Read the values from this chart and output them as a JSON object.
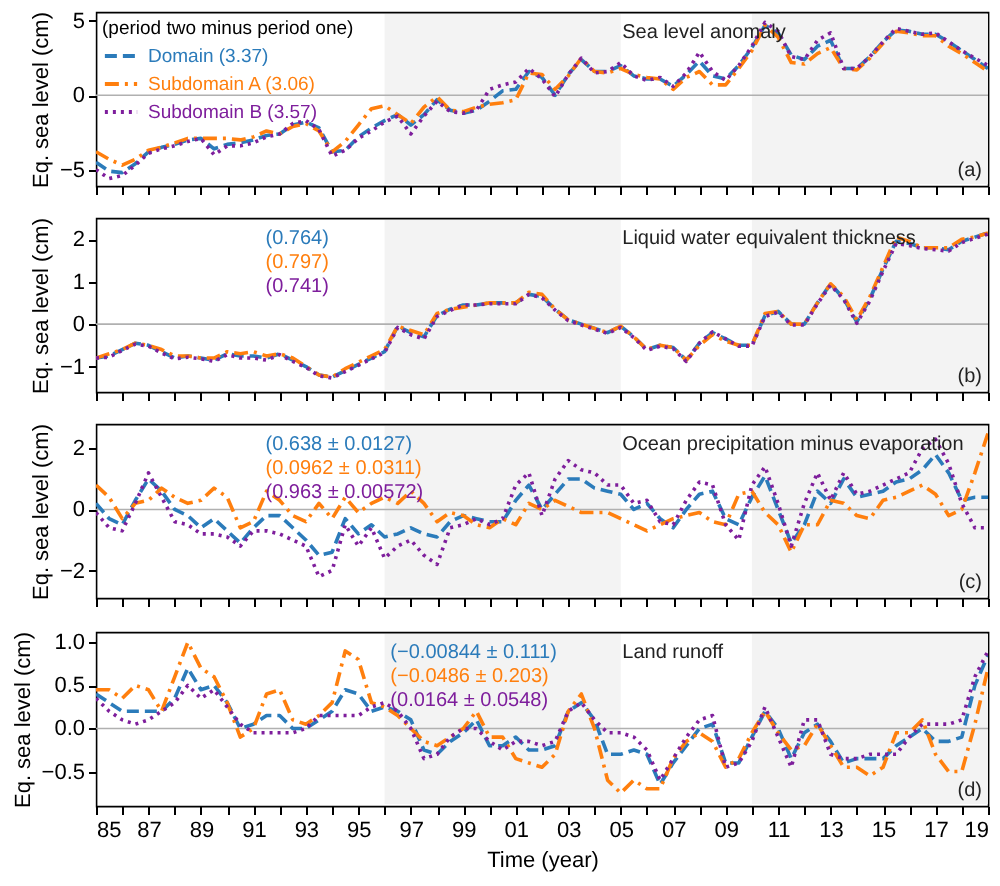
{
  "chart_data": [
    {
      "type": "line",
      "title": "Sea level anomaly",
      "ylabel": "Eq. sea level (cm)",
      "legend_title": "(period two minus period one)",
      "legend": "top left",
      "annotations": [
        "(a)"
      ],
      "tick_labels": "y",
      "xlim": [
        1985,
        2019
      ],
      "xticks": [
        {
          "value": 1985,
          "label": null
        },
        {
          "value": 1986,
          "label": null
        },
        {
          "value": 1987,
          "label": null
        },
        {
          "value": 1988,
          "label": null
        },
        {
          "value": 1989,
          "label": null
        },
        {
          "value": 1990,
          "label": null
        },
        {
          "value": 1991,
          "label": null
        },
        {
          "value": 1992,
          "label": null
        },
        {
          "value": 1993,
          "label": null
        },
        {
          "value": 1994,
          "label": null
        },
        {
          "value": 1995,
          "label": null
        },
        {
          "value": 1996,
          "label": null
        },
        {
          "value": 1997,
          "label": null
        },
        {
          "value": 1998,
          "label": null
        },
        {
          "value": 1999,
          "label": null
        },
        {
          "value": 2000,
          "label": null
        },
        {
          "value": 2001,
          "label": null
        },
        {
          "value": 2002,
          "label": null
        },
        {
          "value": 2003,
          "label": null
        },
        {
          "value": 2004,
          "label": null
        },
        {
          "value": 2005,
          "label": null
        },
        {
          "value": 2006,
          "label": null
        },
        {
          "value": 2007,
          "label": null
        },
        {
          "value": 2008,
          "label": null
        },
        {
          "value": 2009,
          "label": null
        },
        {
          "value": 2010,
          "label": null
        },
        {
          "value": 2011,
          "label": null
        },
        {
          "value": 2012,
          "label": null
        },
        {
          "value": 2013,
          "label": null
        },
        {
          "value": 2014,
          "label": null
        },
        {
          "value": 2015,
          "label": null
        },
        {
          "value": 2016,
          "label": null
        },
        {
          "value": 2017,
          "label": null
        },
        {
          "value": 2018,
          "label": null
        },
        {
          "value": 2019,
          "label": null
        }
      ],
      "ylim": [
        -6.1,
        5.6
      ],
      "yticks": [
        -5,
        0,
        5
      ],
      "ref_lines": [
        {
          "axis": "y",
          "value": 0,
          "color": "#b0b0b0"
        }
      ],
      "bands": [
        {
          "axis": "x",
          "from": 1996,
          "to": 2005,
          "color": "#f3f3f3"
        },
        {
          "axis": "x",
          "from": 2010,
          "to": 2019,
          "color": "#f3f3f3"
        }
      ],
      "x": [
        1985,
        1985.5,
        1986,
        1986.5,
        1987,
        1987.5,
        1988,
        1988.5,
        1989,
        1989.5,
        1990,
        1990.5,
        1991,
        1991.5,
        1992,
        1992.5,
        1993,
        1993.5,
        1994,
        1994.5,
        1995,
        1995.5,
        1996,
        1996.5,
        1997,
        1997.5,
        1998,
        1998.5,
        1999,
        1999.5,
        2000,
        2000.5,
        2001,
        2001.5,
        2002,
        2002.5,
        2003,
        2003.5,
        2004,
        2004.5,
        2005,
        2005.5,
        2006,
        2006.5,
        2007,
        2007.5,
        2008,
        2008.5,
        2009,
        2009.5,
        2010,
        2010.5,
        2011,
        2011.5,
        2012,
        2012.5,
        2013,
        2013.5,
        2014,
        2014.5,
        2015,
        2015.5,
        2016,
        2016.5,
        2017,
        2017.5,
        2018,
        2018.5,
        2019
      ],
      "series": [
        {
          "name": "Domain (3.37)",
          "color": "#2b7bba",
          "line_style": "dashed",
          "values": [
            -4.5,
            -5.1,
            -5.2,
            -4.6,
            -3.8,
            -3.5,
            -3.3,
            -3.0,
            -2.9,
            -3.6,
            -3.3,
            -3.2,
            -3.0,
            -2.7,
            -2.6,
            -2.0,
            -1.8,
            -2.2,
            -3.8,
            -3.7,
            -2.8,
            -2.2,
            -1.7,
            -1.3,
            -2.0,
            -1.3,
            -0.3,
            -1.0,
            -1.2,
            -1.0,
            -0.4,
            0.3,
            0.4,
            1.6,
            1.2,
            0.0,
            1.4,
            2.4,
            1.6,
            1.6,
            2.0,
            1.3,
            1.1,
            1.1,
            0.6,
            1.4,
            2.3,
            1.3,
            1.1,
            2.0,
            3.2,
            4.7,
            4.2,
            2.7,
            2.4,
            3.3,
            3.7,
            1.8,
            1.8,
            2.6,
            3.6,
            4.4,
            4.3,
            4.1,
            4.1,
            3.6,
            3.0,
            2.4,
            1.8
          ]
        },
        {
          "name": "Subdomain A (3.06)",
          "color": "#ff7f0e",
          "line_style": "dashdot",
          "values": [
            -3.8,
            -4.3,
            -4.7,
            -4.3,
            -3.7,
            -3.5,
            -3.2,
            -2.9,
            -2.9,
            -2.9,
            -2.9,
            -3.0,
            -2.8,
            -2.4,
            -2.6,
            -2.1,
            -1.9,
            -2.4,
            -3.8,
            -3.1,
            -2.0,
            -0.9,
            -0.7,
            -1.3,
            -1.9,
            -0.8,
            -0.1,
            -1.0,
            -1.1,
            -0.8,
            -0.6,
            -0.5,
            -0.3,
            1.5,
            1.4,
            0.4,
            1.3,
            2.5,
            1.6,
            1.5,
            1.8,
            1.4,
            1.2,
            1.1,
            0.4,
            1.2,
            1.6,
            0.7,
            0.7,
            1.8,
            3.0,
            4.7,
            3.9,
            2.2,
            2.1,
            2.8,
            3.2,
            1.8,
            1.7,
            2.5,
            3.5,
            4.3,
            4.2,
            4.0,
            4.0,
            3.3,
            2.8,
            2.2,
            1.6
          ]
        },
        {
          "name": "Subdomain B (3.57)",
          "color": "#7e1e9c",
          "line_style": "dotted",
          "values": [
            -5.0,
            -5.6,
            -5.4,
            -4.7,
            -3.9,
            -3.6,
            -3.4,
            -3.1,
            -2.9,
            -4.0,
            -3.4,
            -3.4,
            -3.2,
            -2.8,
            -2.6,
            -1.9,
            -1.7,
            -2.3,
            -4.1,
            -3.7,
            -2.9,
            -2.4,
            -1.8,
            -1.4,
            -2.6,
            -1.4,
            -0.4,
            -1.1,
            -1.2,
            -1.0,
            0.4,
            0.7,
            0.9,
            1.8,
            1.1,
            -0.1,
            1.4,
            2.5,
            1.5,
            1.6,
            2.2,
            1.3,
            1.0,
            1.2,
            0.6,
            1.5,
            2.9,
            1.6,
            1.0,
            2.0,
            3.3,
            4.9,
            4.3,
            2.6,
            2.4,
            3.7,
            4.2,
            1.8,
            1.8,
            2.6,
            3.6,
            4.5,
            4.3,
            4.1,
            4.2,
            3.6,
            3.0,
            2.5,
            2.0
          ]
        }
      ]
    },
    {
      "type": "line",
      "title": "Liquid water equivalent thickness",
      "ylabel": "Eq. sea level (cm)",
      "annotations": [
        "(0.764)",
        "(0.797)",
        "(0.741)",
        "(b)"
      ],
      "tick_labels": "y",
      "xlim": [
        1985,
        2019
      ],
      "xticks": [
        {
          "value": 1985,
          "label": null
        },
        {
          "value": 1986,
          "label": null
        },
        {
          "value": 1987,
          "label": null
        },
        {
          "value": 1988,
          "label": null
        },
        {
          "value": 1989,
          "label": null
        },
        {
          "value": 1990,
          "label": null
        },
        {
          "value": 1991,
          "label": null
        },
        {
          "value": 1992,
          "label": null
        },
        {
          "value": 1993,
          "label": null
        },
        {
          "value": 1994,
          "label": null
        },
        {
          "value": 1995,
          "label": null
        },
        {
          "value": 1996,
          "label": null
        },
        {
          "value": 1997,
          "label": null
        },
        {
          "value": 1998,
          "label": null
        },
        {
          "value": 1999,
          "label": null
        },
        {
          "value": 2000,
          "label": null
        },
        {
          "value": 2001,
          "label": null
        },
        {
          "value": 2002,
          "label": null
        },
        {
          "value": 2003,
          "label": null
        },
        {
          "value": 2004,
          "label": null
        },
        {
          "value": 2005,
          "label": null
        },
        {
          "value": 2006,
          "label": null
        },
        {
          "value": 2007,
          "label": null
        },
        {
          "value": 2008,
          "label": null
        },
        {
          "value": 2009,
          "label": null
        },
        {
          "value": 2010,
          "label": null
        },
        {
          "value": 2011,
          "label": null
        },
        {
          "value": 2012,
          "label": null
        },
        {
          "value": 2013,
          "label": null
        },
        {
          "value": 2014,
          "label": null
        },
        {
          "value": 2015,
          "label": null
        },
        {
          "value": 2016,
          "label": null
        },
        {
          "value": 2017,
          "label": null
        },
        {
          "value": 2018,
          "label": null
        },
        {
          "value": 2019,
          "label": null
        }
      ],
      "ylim": [
        -1.6,
        2.5
      ],
      "yticks": [
        -1,
        0,
        1,
        2
      ],
      "ref_lines": [
        {
          "axis": "y",
          "value": 0,
          "color": "#b0b0b0"
        }
      ],
      "bands": [
        {
          "axis": "x",
          "from": 1996,
          "to": 2005,
          "color": "#f3f3f3"
        },
        {
          "axis": "x",
          "from": 2010,
          "to": 2019,
          "color": "#f3f3f3"
        }
      ],
      "x": [
        1985,
        1985.5,
        1986,
        1986.5,
        1987,
        1987.5,
        1988,
        1988.5,
        1989,
        1989.5,
        1990,
        1990.5,
        1991,
        1991.5,
        1992,
        1992.5,
        1993,
        1993.5,
        1994,
        1994.5,
        1995,
        1995.5,
        1996,
        1996.5,
        1997,
        1997.5,
        1998,
        1998.5,
        1999,
        1999.5,
        2000,
        2000.5,
        2001,
        2001.5,
        2002,
        2002.5,
        2003,
        2003.5,
        2004,
        2004.5,
        2005,
        2005.5,
        2006,
        2006.5,
        2007,
        2007.5,
        2008,
        2008.5,
        2009,
        2009.5,
        2010,
        2010.5,
        2011,
        2011.5,
        2012,
        2012.5,
        2013,
        2013.5,
        2014,
        2014.5,
        2015,
        2015.5,
        2016,
        2016.5,
        2017,
        2017.5,
        2018,
        2018.5,
        2019
      ],
      "series": [
        {
          "color": "#2b7bba",
          "line_style": "dashed",
          "values": [
            -0.8,
            -0.75,
            -0.6,
            -0.45,
            -0.5,
            -0.65,
            -0.8,
            -0.75,
            -0.8,
            -0.85,
            -0.7,
            -0.75,
            -0.75,
            -0.8,
            -0.7,
            -0.85,
            -1.0,
            -1.2,
            -1.25,
            -1.1,
            -0.95,
            -0.8,
            -0.65,
            -0.05,
            -0.2,
            -0.3,
            0.2,
            0.35,
            0.45,
            0.45,
            0.5,
            0.5,
            0.5,
            0.7,
            0.65,
            0.35,
            0.1,
            0.0,
            -0.1,
            -0.2,
            -0.05,
            -0.3,
            -0.6,
            -0.5,
            -0.55,
            -0.85,
            -0.45,
            -0.2,
            -0.35,
            -0.5,
            -0.5,
            0.2,
            0.3,
            0.0,
            0.0,
            0.5,
            0.95,
            0.6,
            0.05,
            0.6,
            1.3,
            1.95,
            1.9,
            1.8,
            1.8,
            1.75,
            1.95,
            2.05,
            2.15
          ]
        },
        {
          "color": "#ff7f0e",
          "line_style": "dashdot",
          "values": [
            -0.8,
            -0.7,
            -0.6,
            -0.45,
            -0.5,
            -0.6,
            -0.75,
            -0.75,
            -0.8,
            -0.8,
            -0.65,
            -0.7,
            -0.65,
            -0.75,
            -0.7,
            -0.8,
            -1.0,
            -1.2,
            -1.25,
            -1.05,
            -0.9,
            -0.75,
            -0.6,
            -0.05,
            -0.15,
            -0.25,
            0.25,
            0.35,
            0.4,
            0.45,
            0.5,
            0.5,
            0.5,
            0.75,
            0.7,
            0.35,
            0.1,
            0.0,
            -0.1,
            -0.2,
            -0.05,
            -0.3,
            -0.6,
            -0.5,
            -0.55,
            -0.85,
            -0.5,
            -0.25,
            -0.4,
            -0.5,
            -0.5,
            0.25,
            0.3,
            0.0,
            0.0,
            0.5,
            0.95,
            0.65,
            0.1,
            0.65,
            1.35,
            2.05,
            1.95,
            1.8,
            1.8,
            1.8,
            2.0,
            2.05,
            2.15
          ]
        },
        {
          "color": "#7e1e9c",
          "line_style": "dotted",
          "values": [
            -0.8,
            -0.78,
            -0.62,
            -0.47,
            -0.52,
            -0.68,
            -0.82,
            -0.78,
            -0.82,
            -0.88,
            -0.72,
            -0.8,
            -0.8,
            -0.85,
            -0.72,
            -0.88,
            -1.02,
            -1.22,
            -1.27,
            -1.12,
            -0.97,
            -0.82,
            -0.67,
            -0.08,
            -0.25,
            -0.35,
            0.18,
            0.32,
            0.45,
            0.45,
            0.48,
            0.48,
            0.48,
            0.7,
            0.62,
            0.33,
            0.08,
            -0.02,
            -0.12,
            -0.22,
            -0.08,
            -0.32,
            -0.62,
            -0.52,
            -0.58,
            -0.88,
            -0.45,
            -0.18,
            -0.35,
            -0.52,
            -0.52,
            0.18,
            0.28,
            -0.02,
            -0.02,
            0.48,
            0.92,
            0.58,
            0.02,
            0.55,
            1.25,
            1.9,
            1.85,
            1.78,
            1.75,
            1.72,
            1.92,
            2.02,
            2.12
          ]
        }
      ]
    },
    {
      "type": "line",
      "title": "Ocean precipitation minus evaporation",
      "ylabel": "Eq. sea level (cm)",
      "annotations": [
        "(0.638 ± 0.0127)",
        "(0.0962 ± 0.0311)",
        "(0.963 ± 0.00572)",
        "(c)"
      ],
      "tick_labels": "y",
      "xlim": [
        1985,
        2019
      ],
      "xticks": [
        {
          "value": 1985,
          "label": null
        },
        {
          "value": 1986,
          "label": null
        },
        {
          "value": 1987,
          "label": null
        },
        {
          "value": 1988,
          "label": null
        },
        {
          "value": 1989,
          "label": null
        },
        {
          "value": 1990,
          "label": null
        },
        {
          "value": 1991,
          "label": null
        },
        {
          "value": 1992,
          "label": null
        },
        {
          "value": 1993,
          "label": null
        },
        {
          "value": 1994,
          "label": null
        },
        {
          "value": 1995,
          "label": null
        },
        {
          "value": 1996,
          "label": null
        },
        {
          "value": 1997,
          "label": null
        },
        {
          "value": 1998,
          "label": null
        },
        {
          "value": 1999,
          "label": null
        },
        {
          "value": 2000,
          "label": null
        },
        {
          "value": 2001,
          "label": null
        },
        {
          "value": 2002,
          "label": null
        },
        {
          "value": 2003,
          "label": null
        },
        {
          "value": 2004,
          "label": null
        },
        {
          "value": 2005,
          "label": null
        },
        {
          "value": 2006,
          "label": null
        },
        {
          "value": 2007,
          "label": null
        },
        {
          "value": 2008,
          "label": null
        },
        {
          "value": 2009,
          "label": null
        },
        {
          "value": 2010,
          "label": null
        },
        {
          "value": 2011,
          "label": null
        },
        {
          "value": 2012,
          "label": null
        },
        {
          "value": 2013,
          "label": null
        },
        {
          "value": 2014,
          "label": null
        },
        {
          "value": 2015,
          "label": null
        },
        {
          "value": 2016,
          "label": null
        },
        {
          "value": 2017,
          "label": null
        },
        {
          "value": 2018,
          "label": null
        },
        {
          "value": 2019,
          "label": null
        }
      ],
      "ylim": [
        -2.9,
        2.8
      ],
      "yticks": [
        -2,
        0,
        2
      ],
      "ref_lines": [
        {
          "axis": "y",
          "value": 0,
          "color": "#b0b0b0"
        }
      ],
      "bands": [
        {
          "axis": "x",
          "from": 1996,
          "to": 2005,
          "color": "#f3f3f3"
        },
        {
          "axis": "x",
          "from": 2010,
          "to": 2019,
          "color": "#f3f3f3"
        }
      ],
      "x": [
        1985,
        1985.5,
        1986,
        1986.5,
        1987,
        1987.5,
        1988,
        1988.5,
        1989,
        1989.5,
        1990,
        1990.5,
        1991,
        1991.5,
        1992,
        1992.5,
        1993,
        1993.5,
        1994,
        1994.5,
        1995,
        1995.5,
        1996,
        1996.5,
        1997,
        1997.5,
        1998,
        1998.5,
        1999,
        1999.5,
        2000,
        2000.5,
        2001,
        2001.5,
        2002,
        2002.5,
        2003,
        2003.5,
        2004,
        2004.5,
        2005,
        2005.5,
        2006,
        2006.5,
        2007,
        2007.5,
        2008,
        2008.5,
        2009,
        2009.5,
        2010,
        2010.5,
        2011,
        2011.5,
        2012,
        2012.5,
        2013,
        2013.5,
        2014,
        2014.5,
        2015,
        2015.5,
        2016,
        2016.5,
        2017,
        2017.5,
        2018,
        2018.5,
        2019
      ],
      "series": [
        {
          "color": "#2b7bba",
          "line_style": "dashed",
          "values": [
            0.2,
            -0.3,
            -0.5,
            0.3,
            1.0,
            0.6,
            0.0,
            -0.2,
            -0.6,
            -0.3,
            -0.7,
            -1.1,
            -0.6,
            -0.2,
            -0.2,
            -0.6,
            -1.0,
            -1.5,
            -1.4,
            -0.3,
            -0.8,
            -0.5,
            -0.9,
            -0.8,
            -0.6,
            -0.8,
            -0.9,
            -0.4,
            -0.2,
            -0.3,
            -0.4,
            -0.4,
            0.3,
            0.8,
            0.0,
            0.5,
            1.0,
            1.0,
            0.7,
            0.6,
            0.5,
            0.0,
            0.2,
            -0.3,
            -0.6,
            0.0,
            0.5,
            0.6,
            -0.3,
            -0.5,
            0.4,
            1.1,
            0.0,
            -1.1,
            -0.5,
            0.6,
            0.2,
            1.0,
            0.4,
            0.5,
            0.6,
            0.9,
            1.0,
            1.3,
            1.8,
            1.2,
            0.3,
            0.4,
            0.4
          ]
        },
        {
          "color": "#ff7f0e",
          "line_style": "dashdot",
          "values": [
            0.8,
            0.4,
            -0.3,
            0.2,
            0.3,
            0.7,
            0.4,
            0.2,
            0.3,
            0.7,
            0.4,
            -0.6,
            -0.4,
            0.6,
            0.3,
            -0.2,
            -0.4,
            0.2,
            -0.3,
            0.4,
            -0.1,
            0.2,
            0.4,
            0.2,
            0.6,
            0.2,
            -0.4,
            -0.1,
            -0.2,
            -0.5,
            -0.6,
            -0.3,
            -0.5,
            0.2,
            0.0,
            0.3,
            0.1,
            -0.1,
            -0.1,
            -0.1,
            -0.3,
            -0.5,
            -0.7,
            -0.5,
            -0.3,
            -0.2,
            -0.1,
            -0.4,
            -0.5,
            0.5,
            0.6,
            -0.1,
            -0.5,
            -1.4,
            -0.5,
            -0.5,
            0.3,
            0.2,
            -0.2,
            -0.3,
            0.3,
            0.4,
            0.6,
            0.8,
            0.5,
            -0.2,
            0.0,
            1.2,
            2.5
          ]
        },
        {
          "color": "#7e1e9c",
          "line_style": "dotted",
          "values": [
            -0.1,
            -0.6,
            -0.7,
            0.2,
            1.2,
            0.4,
            -0.4,
            -0.5,
            -0.8,
            -0.8,
            -0.9,
            -1.2,
            -0.7,
            -0.7,
            -0.8,
            -1.0,
            -1.2,
            -2.2,
            -2.0,
            -0.5,
            -1.2,
            -0.6,
            -1.6,
            -1.2,
            -1.0,
            -1.5,
            -1.8,
            -0.6,
            -0.5,
            -0.3,
            -0.5,
            -0.3,
            0.8,
            1.2,
            -0.2,
            1.0,
            1.6,
            1.3,
            1.2,
            0.8,
            0.8,
            0.2,
            0.3,
            -0.4,
            -0.5,
            0.3,
            0.9,
            0.8,
            -0.5,
            -1.0,
            0.8,
            1.4,
            0.2,
            -1.2,
            0.2,
            1.2,
            0.3,
            1.2,
            0.5,
            0.6,
            0.8,
            1.0,
            1.2,
            2.0,
            2.3,
            1.5,
            0.2,
            -0.6,
            -0.6
          ]
        }
      ]
    },
    {
      "type": "line",
      "title": "Land runoff",
      "xlabel": "Time (year)",
      "ylabel": "Eq. sea level (cm)",
      "annotations": [
        "(−0.00844 ± 0.111)",
        "(−0.0486 ± 0.203)",
        "(0.0164 ± 0.0548)",
        "(d)"
      ],
      "xlim": [
        1985,
        2019
      ],
      "xticks": [
        {
          "value": 1985,
          "label": "85"
        },
        {
          "value": 1986,
          "label": null
        },
        {
          "value": 1987,
          "label": "87"
        },
        {
          "value": 1988,
          "label": null
        },
        {
          "value": 1989,
          "label": "89"
        },
        {
          "value": 1990,
          "label": null
        },
        {
          "value": 1991,
          "label": "91"
        },
        {
          "value": 1992,
          "label": null
        },
        {
          "value": 1993,
          "label": "93"
        },
        {
          "value": 1994,
          "label": null
        },
        {
          "value": 1995,
          "label": "95"
        },
        {
          "value": 1996,
          "label": null
        },
        {
          "value": 1997,
          "label": "97"
        },
        {
          "value": 1998,
          "label": null
        },
        {
          "value": 1999,
          "label": "99"
        },
        {
          "value": 2000,
          "label": null
        },
        {
          "value": 2001,
          "label": "01"
        },
        {
          "value": 2002,
          "label": null
        },
        {
          "value": 2003,
          "label": "03"
        },
        {
          "value": 2004,
          "label": null
        },
        {
          "value": 2005,
          "label": "05"
        },
        {
          "value": 2006,
          "label": null
        },
        {
          "value": 2007,
          "label": "07"
        },
        {
          "value": 2008,
          "label": null
        },
        {
          "value": 2009,
          "label": "09"
        },
        {
          "value": 2010,
          "label": null
        },
        {
          "value": 2011,
          "label": "11"
        },
        {
          "value": 2012,
          "label": null
        },
        {
          "value": 2013,
          "label": "13"
        },
        {
          "value": 2014,
          "label": null
        },
        {
          "value": 2015,
          "label": "15"
        },
        {
          "value": 2016,
          "label": null
        },
        {
          "value": 2017,
          "label": "17"
        },
        {
          "value": 2018,
          "label": null
        },
        {
          "value": 2019,
          "label": "19"
        }
      ],
      "ylim": [
        -0.9,
        1.12
      ],
      "yticks": [
        {
          "value": -0.5,
          "label": "−0.5"
        },
        {
          "value": 0,
          "label": "0.0"
        },
        {
          "value": 0.5,
          "label": "0.5"
        },
        {
          "value": 1,
          "label": "1.0"
        }
      ],
      "ref_lines": [
        {
          "axis": "y",
          "value": 0,
          "color": "#b0b0b0"
        }
      ],
      "bands": [
        {
          "axis": "x",
          "from": 1996,
          "to": 2005,
          "color": "#f3f3f3"
        },
        {
          "axis": "x",
          "from": 2010,
          "to": 2019,
          "color": "#f3f3f3"
        }
      ],
      "x": [
        1985,
        1985.5,
        1986,
        1986.5,
        1987,
        1987.5,
        1988,
        1988.5,
        1989,
        1989.5,
        1990,
        1990.5,
        1991,
        1991.5,
        1992,
        1992.5,
        1993,
        1993.5,
        1994,
        1994.5,
        1995,
        1995.5,
        1996,
        1996.5,
        1997,
        1997.5,
        1998,
        1998.5,
        1999,
        1999.5,
        2000,
        2000.5,
        2001,
        2001.5,
        2002,
        2002.5,
        2003,
        2003.5,
        2004,
        2004.5,
        2005,
        2005.5,
        2006,
        2006.5,
        2007,
        2007.5,
        2008,
        2008.5,
        2009,
        2009.5,
        2010,
        2010.5,
        2011,
        2011.5,
        2012,
        2012.5,
        2013,
        2013.5,
        2014,
        2014.5,
        2015,
        2015.5,
        2016,
        2016.5,
        2017,
        2017.5,
        2018,
        2018.5,
        2019
      ],
      "series": [
        {
          "color": "#2b7bba",
          "line_style": "dashed",
          "values": [
            0.4,
            0.3,
            0.2,
            0.2,
            0.2,
            0.2,
            0.35,
            0.7,
            0.45,
            0.5,
            0.3,
            0.0,
            0.05,
            0.15,
            0.15,
            0.0,
            0.0,
            0.1,
            0.2,
            0.45,
            0.4,
            0.2,
            0.25,
            0.2,
            0.1,
            -0.25,
            -0.3,
            -0.15,
            -0.05,
            0.1,
            -0.2,
            -0.2,
            -0.1,
            -0.25,
            -0.25,
            -0.2,
            0.2,
            0.3,
            0.1,
            -0.3,
            -0.3,
            -0.25,
            -0.3,
            -0.65,
            -0.4,
            -0.2,
            0.0,
            0.05,
            -0.4,
            -0.4,
            -0.1,
            0.2,
            0.0,
            -0.35,
            -0.05,
            0.05,
            -0.15,
            -0.4,
            -0.35,
            -0.35,
            -0.35,
            -0.2,
            -0.1,
            0.0,
            -0.15,
            -0.15,
            -0.1,
            0.5,
            0.85
          ]
        },
        {
          "color": "#ff7f0e",
          "line_style": "dashdot",
          "values": [
            0.45,
            0.45,
            0.35,
            0.5,
            0.45,
            0.2,
            0.6,
            1.0,
            0.7,
            0.6,
            0.3,
            -0.1,
            0.0,
            0.4,
            0.45,
            0.1,
            0.05,
            0.15,
            0.3,
            0.9,
            0.8,
            0.3,
            0.25,
            0.15,
            0.0,
            -0.15,
            -0.2,
            -0.1,
            0.0,
            0.2,
            -0.1,
            -0.1,
            -0.35,
            -0.4,
            -0.45,
            -0.3,
            0.2,
            0.4,
            0.0,
            -0.6,
            -0.75,
            -0.6,
            -0.7,
            -0.7,
            -0.35,
            -0.15,
            -0.05,
            -0.15,
            -0.45,
            -0.35,
            -0.05,
            0.2,
            -0.05,
            -0.25,
            -0.2,
            0.05,
            -0.2,
            -0.45,
            -0.45,
            -0.55,
            -0.45,
            -0.05,
            -0.05,
            0.1,
            -0.3,
            -0.5,
            -0.5,
            0.05,
            0.7
          ]
        },
        {
          "color": "#7e1e9c",
          "line_style": "dotted",
          "values": [
            0.35,
            0.2,
            0.1,
            0.05,
            0.1,
            0.2,
            0.3,
            0.5,
            0.35,
            0.45,
            0.25,
            0.05,
            -0.05,
            -0.05,
            -0.05,
            -0.05,
            0.0,
            0.15,
            0.15,
            0.15,
            0.15,
            0.25,
            0.3,
            0.2,
            0.0,
            -0.35,
            -0.3,
            -0.1,
            0.0,
            0.0,
            -0.15,
            -0.25,
            -0.15,
            -0.15,
            -0.2,
            -0.15,
            0.2,
            0.3,
            0.1,
            -0.05,
            -0.05,
            -0.1,
            -0.25,
            -0.6,
            -0.35,
            -0.1,
            0.1,
            0.15,
            -0.45,
            -0.4,
            -0.15,
            0.25,
            -0.1,
            -0.45,
            0.1,
            0.1,
            -0.3,
            -0.35,
            -0.35,
            -0.3,
            -0.3,
            -0.3,
            -0.1,
            0.05,
            0.05,
            0.05,
            0.1,
            0.6,
            0.9
          ]
        }
      ]
    }
  ]
}
